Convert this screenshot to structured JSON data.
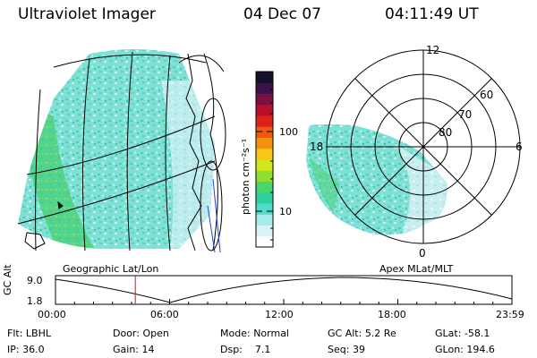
{
  "header": {
    "instrument": "Ultraviolet Imager",
    "date": "04 Dec 07",
    "time": "04:11:49 UT"
  },
  "colorbar": {
    "unit_label": "photon cm⁻²s⁻¹",
    "ticks": [
      "100",
      "10"
    ],
    "colors": [
      "#ffffff",
      "#d8f4f8",
      "#a6ebee",
      "#50dcc8",
      "#2ecfa0",
      "#4ad66a",
      "#8ee02c",
      "#d2e61c",
      "#f6c816",
      "#f49210",
      "#f05810",
      "#e0201a",
      "#b8102a",
      "#7a1040",
      "#3c1048",
      "#14102a"
    ]
  },
  "polar": {
    "mlt_labels": [
      "12",
      "18",
      "6",
      "0"
    ],
    "lat_labels": [
      "60",
      "70",
      "80"
    ]
  },
  "map": {
    "projection_label": "Geographic Lat/Lon",
    "polar_label": "Apex  MLat/MLT"
  },
  "altitude_plot": {
    "ylabel": "GC Alt",
    "y_ticks": [
      "9.0",
      "1.8"
    ],
    "x_ticks": [
      "00:00",
      "06:00",
      "12:00",
      "18:00",
      "23:59"
    ],
    "current_time_hours": 4.197
  },
  "status": {
    "filter": {
      "label": "Flt:",
      "value": "LBHL"
    },
    "ip": {
      "label": "IP:",
      "value": "36.0"
    },
    "door": {
      "label": "Door:",
      "value": "Open"
    },
    "gain": {
      "label": "Gain:",
      "value": "14"
    },
    "mode": {
      "label": "Mode:",
      "value": "Normal"
    },
    "dsp": {
      "label": "Dsp:",
      "value": "7.1"
    },
    "gc_alt": {
      "label": "GC Alt:",
      "value": "5.2 Re"
    },
    "seq": {
      "label": "Seq:",
      "value": "39"
    },
    "glat": {
      "label": "GLat:",
      "value": "-58.1"
    },
    "glon": {
      "label": "GLon:",
      "value": "194.6"
    }
  }
}
